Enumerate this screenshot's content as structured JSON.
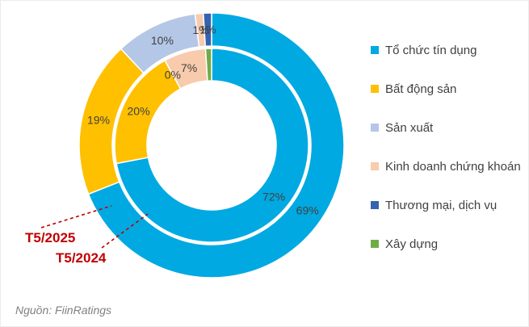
{
  "source_note": "Nguồn: FiinRatings",
  "legend": {
    "items": [
      {
        "label": "Tổ chức tín dụng",
        "color": "#00A9E2"
      },
      {
        "label": "Bất động sản",
        "color": "#FFC000"
      },
      {
        "label": "Sản xuất",
        "color": "#B4C7E7"
      },
      {
        "label": "Kinh doanh chứng khoán",
        "color": "#F8CBAD"
      },
      {
        "label": "Thương mại, dịch vụ",
        "color": "#3563AE"
      },
      {
        "label": "Xây dựng",
        "color": "#6FAC46"
      }
    ]
  },
  "annotations": [
    {
      "text": "T5/2025",
      "color": "#C00000",
      "target_ring": "outer"
    },
    {
      "text": "T5/2024",
      "color": "#C00000",
      "target_ring": "inner"
    }
  ],
  "chart_data": {
    "type": "pie",
    "subtype": "double-ring-donut",
    "title": "",
    "categories": [
      "Tổ chức tín dụng",
      "Bất động sản",
      "Sản xuất",
      "Kinh doanh chứng khoán",
      "Thương mại, dịch vụ",
      "Xây dựng"
    ],
    "colors": [
      "#00A9E2",
      "#FFC000",
      "#B4C7E7",
      "#F8CBAD",
      "#3563AE",
      "#6FAC46"
    ],
    "rings": [
      {
        "name": "T5/2025",
        "position": "outer",
        "values": [
          69,
          19,
          10,
          1,
          1,
          0
        ],
        "labels_shown": [
          true,
          true,
          true,
          true,
          true,
          false
        ]
      },
      {
        "name": "T5/2024",
        "position": "inner",
        "values": [
          72,
          20,
          0,
          7,
          0,
          1
        ],
        "labels_shown": [
          true,
          true,
          true,
          true,
          false,
          false
        ]
      }
    ],
    "label_suffix": "%",
    "label_color": "#404040",
    "start_angle": "12-oclock",
    "direction": "clockwise",
    "legend_position": "right",
    "segment_outline_color": "#FFFFFF"
  }
}
